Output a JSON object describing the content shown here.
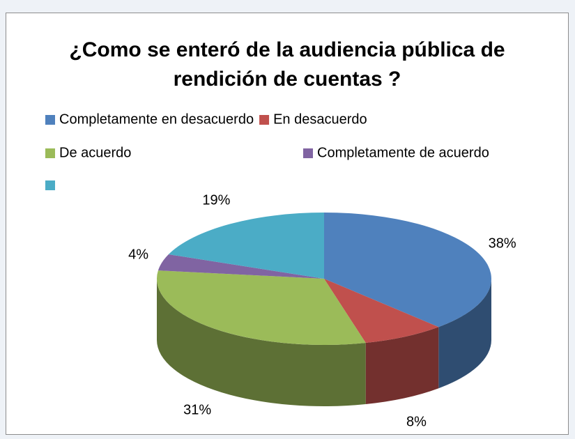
{
  "chart_data": {
    "type": "pie",
    "title": "¿Como se enteró de la audiencia pública de rendición de cuentas ?",
    "categories": [
      "Completamente en desacuerdo",
      "En desacuerdo",
      "De acuerdo",
      "Completamente de acuerdo",
      null
    ],
    "values": [
      38,
      8,
      31,
      4,
      19
    ],
    "value_labels": [
      "38%",
      "8%",
      "31%",
      "4%",
      "19%"
    ],
    "colors": [
      "#4f81bd",
      "#c0504d",
      "#9bbb59",
      "#8064a2",
      "#4bacc6"
    ],
    "legend": "top"
  }
}
